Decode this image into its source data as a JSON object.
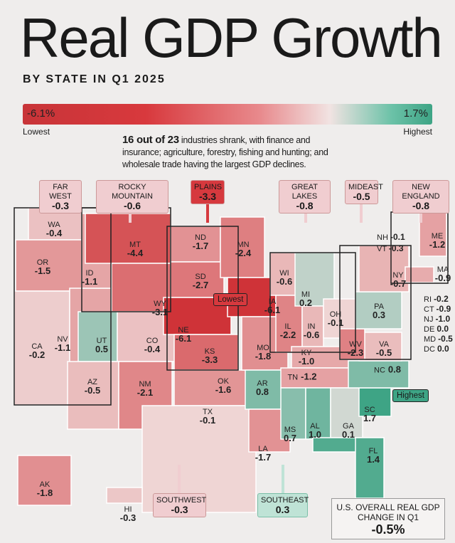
{
  "title": "Real GDP Growth",
  "subtitle": "BY STATE IN Q1 2025",
  "scale": {
    "min": "-6.1%",
    "max": "1.7%",
    "min_label": "Lowest",
    "max_label": "Highest",
    "min_value": -6.1,
    "max_value": 1.7
  },
  "note": {
    "bold": "16 out of 23",
    "text": " industries shrank, with finance and insurance; agriculture, forestry, fishing and hunting; and wholesale trade having the largest GDP declines."
  },
  "regions": [
    {
      "name": "FAR WEST",
      "value": "-0.3"
    },
    {
      "name": "ROCKY MOUNTAIN",
      "value": "-0.6"
    },
    {
      "name": "PLAINS",
      "value": "-3.3"
    },
    {
      "name": "GREAT LAKES",
      "value": "-0.8"
    },
    {
      "name": "MIDEAST",
      "value": "-0.5"
    },
    {
      "name": "NEW ENGLAND",
      "value": "-0.8"
    },
    {
      "name": "SOUTHWEST",
      "value": "-0.3"
    },
    {
      "name": "SOUTHEAST",
      "value": "0.3"
    }
  ],
  "states": [
    {
      "abbr": "WA",
      "value": "-0.4"
    },
    {
      "abbr": "OR",
      "value": "-1.5"
    },
    {
      "abbr": "CA",
      "value": "-0.2"
    },
    {
      "abbr": "NV",
      "value": "-1.1"
    },
    {
      "abbr": "ID",
      "value": "-1.1"
    },
    {
      "abbr": "MT",
      "value": "-4.4"
    },
    {
      "abbr": "WY",
      "value": "-3.1"
    },
    {
      "abbr": "UT",
      "value": "0.5"
    },
    {
      "abbr": "CO",
      "value": "-0.4"
    },
    {
      "abbr": "AZ",
      "value": "-0.5"
    },
    {
      "abbr": "NM",
      "value": "-2.1"
    },
    {
      "abbr": "ND",
      "value": "-1.7"
    },
    {
      "abbr": "SD",
      "value": "-2.7"
    },
    {
      "abbr": "NE",
      "value": "-6.1"
    },
    {
      "abbr": "KS",
      "value": "-3.3"
    },
    {
      "abbr": "OK",
      "value": "-1.6"
    },
    {
      "abbr": "TX",
      "value": "-0.1"
    },
    {
      "abbr": "MN",
      "value": "-2.4"
    },
    {
      "abbr": "IA",
      "value": "-6.1"
    },
    {
      "abbr": "MO",
      "value": "-1.8"
    },
    {
      "abbr": "AR",
      "value": "0.8"
    },
    {
      "abbr": "LA",
      "value": "-1.7"
    },
    {
      "abbr": "WI",
      "value": "-0.6"
    },
    {
      "abbr": "IL",
      "value": "-2.2"
    },
    {
      "abbr": "MI",
      "value": "0.2"
    },
    {
      "abbr": "IN",
      "value": "-0.6"
    },
    {
      "abbr": "OH",
      "value": "-0.1"
    },
    {
      "abbr": "KY",
      "value": "-1.0"
    },
    {
      "abbr": "TN",
      "value": "-1.2"
    },
    {
      "abbr": "MS",
      "value": "0.7"
    },
    {
      "abbr": "AL",
      "value": "1.0"
    },
    {
      "abbr": "GA",
      "value": "0.1"
    },
    {
      "abbr": "FL",
      "value": "1.4"
    },
    {
      "abbr": "SC",
      "value": "1.7"
    },
    {
      "abbr": "NC",
      "value": "0.8"
    },
    {
      "abbr": "VA",
      "value": "-0.5"
    },
    {
      "abbr": "WV",
      "value": "-2.3"
    },
    {
      "abbr": "PA",
      "value": "0.3"
    },
    {
      "abbr": "NY",
      "value": "-0.7"
    },
    {
      "abbr": "ME",
      "value": "-1.2"
    },
    {
      "abbr": "MA",
      "value": "-0.9"
    },
    {
      "abbr": "AK",
      "value": "-1.8"
    },
    {
      "abbr": "HI",
      "value": "-0.3"
    }
  ],
  "small_states": [
    {
      "abbr": "NH",
      "value": "-0.1"
    },
    {
      "abbr": "VT",
      "value": "-0.3"
    },
    {
      "abbr": "RI",
      "value": "-0.2"
    },
    {
      "abbr": "CT",
      "value": "-0.9"
    },
    {
      "abbr": "NJ",
      "value": "-1.0"
    },
    {
      "abbr": "DE",
      "value": "0.0"
    },
    {
      "abbr": "MD",
      "value": "-0.5"
    },
    {
      "abbr": "DC",
      "value": "0.0"
    }
  ],
  "lowest_badge": "Lowest",
  "highest_badge": "Highest",
  "total": {
    "label": "U.S. OVERALL REAL GDP CHANGE IN Q1",
    "value": "-0.5%"
  },
  "colors": {
    "low": "#cf3338",
    "mid": "#f2e4e3",
    "high": "#3ea485"
  }
}
